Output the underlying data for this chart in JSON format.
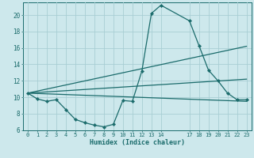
{
  "xlabel": "Humidex (Indice chaleur)",
  "background_color": "#cde8ec",
  "grid_color": "#a8ced4",
  "line_color": "#1a6b6b",
  "xlim": [
    -0.5,
    23.5
  ],
  "ylim": [
    6,
    21.5
  ],
  "yticks": [
    6,
    8,
    10,
    12,
    14,
    16,
    18,
    20
  ],
  "xticks": [
    0,
    1,
    2,
    3,
    4,
    5,
    6,
    7,
    8,
    9,
    10,
    11,
    12,
    13,
    14,
    17,
    18,
    19,
    20,
    21,
    22,
    23
  ],
  "curve1_x": [
    0,
    1,
    2,
    3,
    4,
    5,
    6,
    7,
    8,
    9,
    10,
    11,
    12,
    13,
    14,
    17,
    18,
    19,
    20,
    21,
    22,
    23
  ],
  "curve1_y": [
    10.5,
    9.8,
    9.5,
    9.7,
    8.5,
    7.3,
    6.9,
    6.6,
    6.4,
    6.7,
    9.6,
    9.5,
    13.2,
    20.2,
    21.2,
    19.3,
    16.3,
    13.3,
    12.0,
    10.5,
    9.7,
    9.7
  ],
  "line1_x": [
    0,
    23
  ],
  "line1_y": [
    10.5,
    16.2
  ],
  "line2_x": [
    0,
    23
  ],
  "line2_y": [
    10.5,
    12.2
  ],
  "line3_x": [
    0,
    23
  ],
  "line3_y": [
    10.5,
    9.5
  ]
}
